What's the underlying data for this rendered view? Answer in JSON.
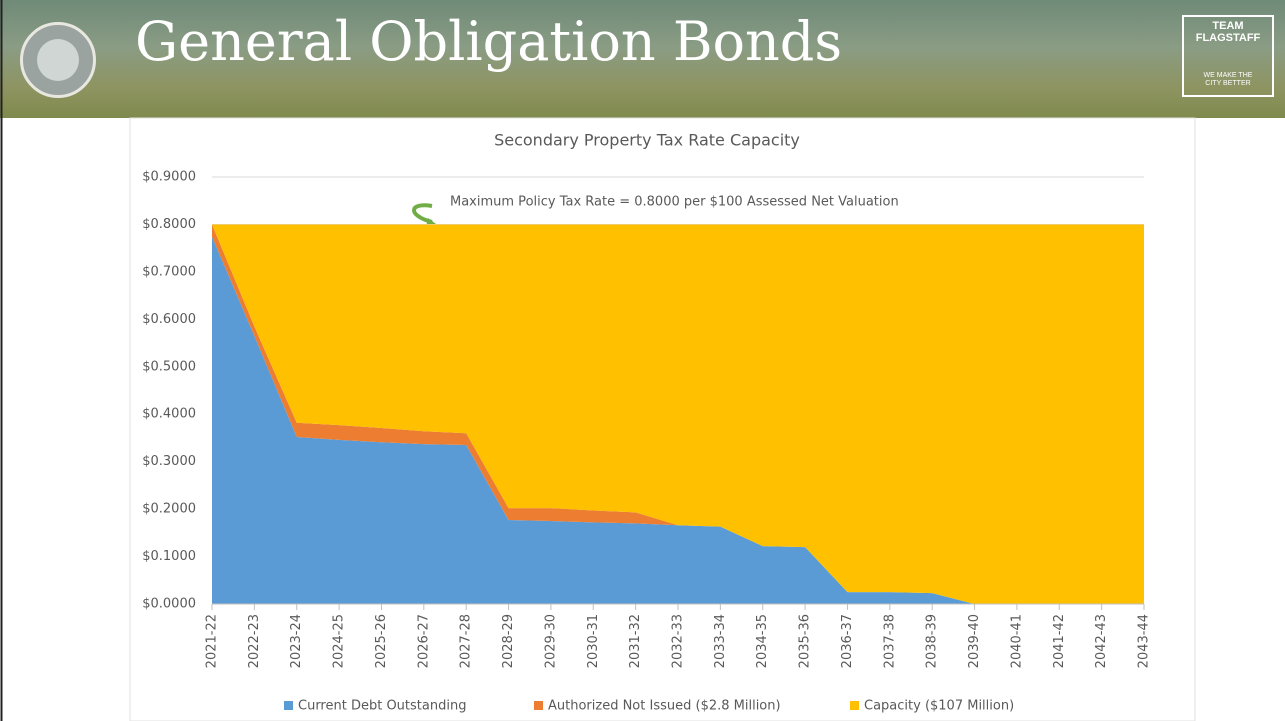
{
  "header": {
    "title": "General Obligation Bonds",
    "logo_line1": "TEAM FLAGSTAFF",
    "logo_line2": "WE MAKE THE",
    "logo_line3": "CITY BETTER"
  },
  "chart_data": {
    "type": "stacked_area",
    "title": "Secondary Property Tax Rate Capacity",
    "annotation": "Maximum Policy Tax Rate = 0.8000 per $100 Assessed Net Valuation",
    "categories": [
      "2021-22",
      "2022-23",
      "2023-24",
      "2024-25",
      "2025-26",
      "2026-27",
      "2027-28",
      "2028-29",
      "2029-30",
      "2030-31",
      "2031-32",
      "2032-33",
      "2033-34",
      "2034-35",
      "2035-36",
      "2036-37",
      "2037-38",
      "2038-39",
      "2039-40",
      "2040-41",
      "2041-42",
      "2042-43",
      "2043-44"
    ],
    "series": [
      {
        "name": "Current Debt Outstanding",
        "color": "#5b9bd5",
        "values": [
          0.774,
          0.565,
          0.352,
          0.346,
          0.341,
          0.337,
          0.335,
          0.177,
          0.175,
          0.172,
          0.17,
          0.166,
          0.163,
          0.122,
          0.12,
          0.025,
          0.025,
          0.023,
          0,
          0,
          0,
          0,
          0
        ]
      },
      {
        "name": "Authorized Not Issued ($2.8 Million)",
        "color": "#ed7d31",
        "values": [
          0.026,
          0.02,
          0.03,
          0.031,
          0.03,
          0.027,
          0.025,
          0.025,
          0.027,
          0.025,
          0.023,
          0,
          0,
          0,
          0,
          0,
          0,
          0,
          0,
          0,
          0,
          0,
          0
        ]
      },
      {
        "name": "Capacity ($107 Million)",
        "color": "#ffc000",
        "values": [
          0,
          0.215,
          0.418,
          0.423,
          0.429,
          0.436,
          0.44,
          0.598,
          0.598,
          0.603,
          0.607,
          0.634,
          0.637,
          0.678,
          0.68,
          0.775,
          0.775,
          0.777,
          0.8,
          0.8,
          0.8,
          0.8,
          0.8
        ]
      }
    ],
    "ylim": [
      0,
      0.9
    ],
    "yticks": [
      {
        "value": 0,
        "label": "$0.0000"
      },
      {
        "value": 0.1,
        "label": "$0.1000"
      },
      {
        "value": 0.2,
        "label": "$0.2000"
      },
      {
        "value": 0.3,
        "label": "$0.3000"
      },
      {
        "value": 0.4,
        "label": "$0.4000"
      },
      {
        "value": 0.5,
        "label": "$0.5000"
      },
      {
        "value": 0.6,
        "label": "$0.6000"
      },
      {
        "value": 0.7,
        "label": "$0.7000"
      },
      {
        "value": 0.8,
        "label": "$0.8000"
      },
      {
        "value": 0.9,
        "label": "$0.9000"
      }
    ],
    "grid": true,
    "legend": "bottom"
  }
}
